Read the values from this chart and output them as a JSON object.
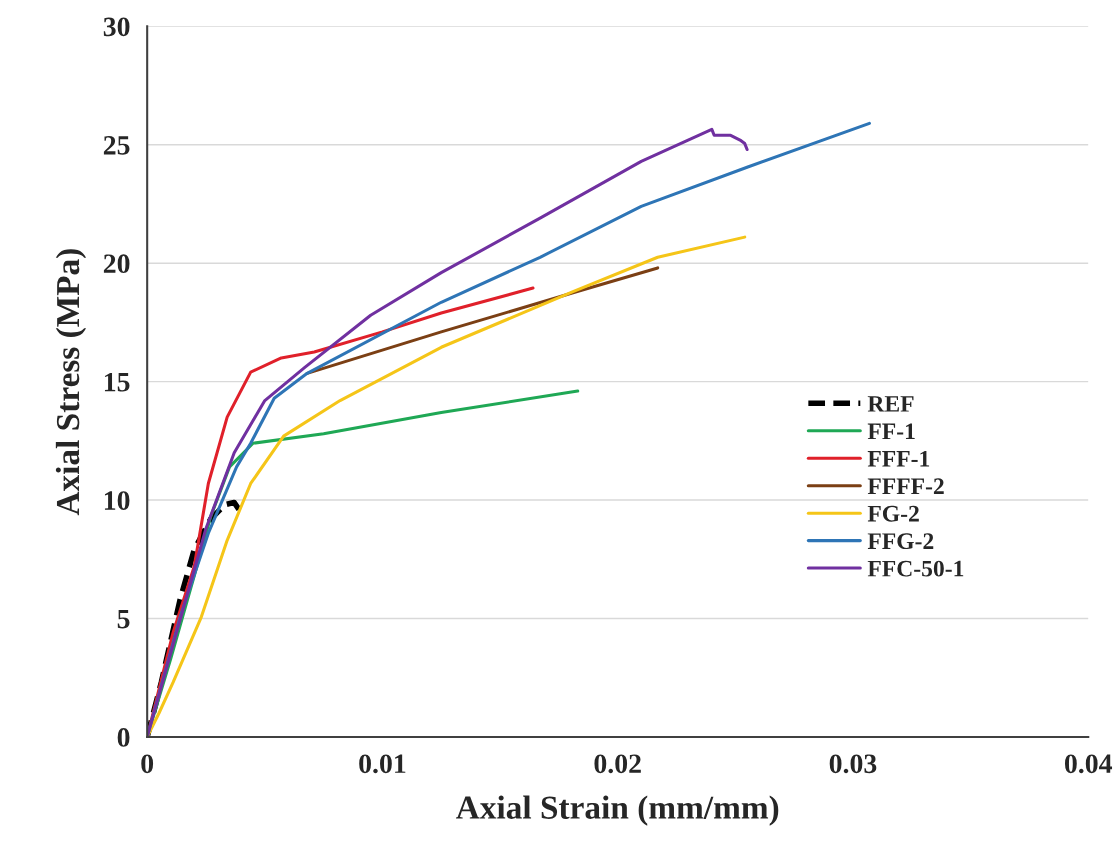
{
  "chart_data": {
    "type": "line",
    "xlabel": "Axial Strain (mm/mm)",
    "ylabel": "Axial Stress (MPa)",
    "xlim": [
      0,
      0.04
    ],
    "xticks": [
      0,
      0.01,
      0.02,
      0.03,
      0.04
    ],
    "ylim": [
      0,
      30
    ],
    "yticks": [
      0,
      5,
      10,
      15,
      20,
      25,
      30
    ],
    "grid": "y",
    "legend": "right",
    "marker": "none",
    "series": [
      {
        "name": "REF",
        "color": "#000000",
        "line_style": "dashed",
        "x": [
          0,
          0.0006,
          0.0014,
          0.002,
          0.0027,
          0.0033,
          0.0037,
          0.0039
        ],
        "values": [
          0,
          2.3,
          5.8,
          7.9,
          9.2,
          9.8,
          9.9,
          9.6
        ]
      },
      {
        "name": "FF-1",
        "color": "#1fa855",
        "line_style": "solid",
        "x": [
          0,
          0.001,
          0.002,
          0.0027,
          0.0035,
          0.0045,
          0.0075,
          0.0125,
          0.0183
        ],
        "values": [
          0,
          3.3,
          6.8,
          9.3,
          11.4,
          12.4,
          12.8,
          13.7,
          14.6
        ]
      },
      {
        "name": "FFF-1",
        "color": "#e0202a",
        "line_style": "solid",
        "x": [
          0,
          0.0011,
          0.002,
          0.0026,
          0.0034,
          0.0044,
          0.0057,
          0.0071,
          0.01,
          0.0125,
          0.0164
        ],
        "values": [
          0,
          4.4,
          7.2,
          10.7,
          13.5,
          15.4,
          16.0,
          16.25,
          17.1,
          17.9,
          18.95
        ]
      },
      {
        "name": "FFFF-2",
        "color": "#7b3f14",
        "line_style": "solid",
        "x": [
          0.0068,
          0.0125,
          0.0181,
          0.0217
        ],
        "values": [
          15.35,
          17.1,
          18.75,
          19.8
        ]
      },
      {
        "name": "FG-2",
        "color": "#f5c518",
        "line_style": "solid",
        "x": [
          0,
          0.0005,
          0.0011,
          0.0023,
          0.0034,
          0.0044,
          0.0058,
          0.0082,
          0.0125,
          0.0181,
          0.0217,
          0.0254
        ],
        "values": [
          0,
          1.0,
          2.3,
          5.06,
          8.3,
          10.7,
          12.7,
          14.2,
          16.45,
          18.8,
          20.25,
          21.1
        ]
      },
      {
        "name": "FFG-2",
        "color": "#2e75b6",
        "line_style": "solid",
        "x": [
          0,
          0.0014,
          0.0026,
          0.0038,
          0.0044,
          0.0054,
          0.0068,
          0.0125,
          0.0167,
          0.021,
          0.0255,
          0.0307
        ],
        "values": [
          0,
          5.06,
          8.6,
          11.4,
          12.4,
          14.3,
          15.35,
          18.35,
          20.25,
          22.4,
          24.05,
          25.9
        ]
      },
      {
        "name": "FFC-50-1",
        "color": "#7030a0",
        "line_style": "solid",
        "x": [
          0,
          0.0013,
          0.0025,
          0.0037,
          0.005,
          0.0067,
          0.0095,
          0.0125,
          0.0167,
          0.021,
          0.024,
          0.0241,
          0.0248,
          0.0252,
          0.0254,
          0.0255
        ],
        "values": [
          0,
          4.6,
          8.8,
          12.0,
          14.2,
          15.6,
          17.8,
          19.6,
          21.9,
          24.3,
          25.65,
          25.4,
          25.4,
          25.2,
          25.05,
          24.8
        ]
      }
    ]
  }
}
